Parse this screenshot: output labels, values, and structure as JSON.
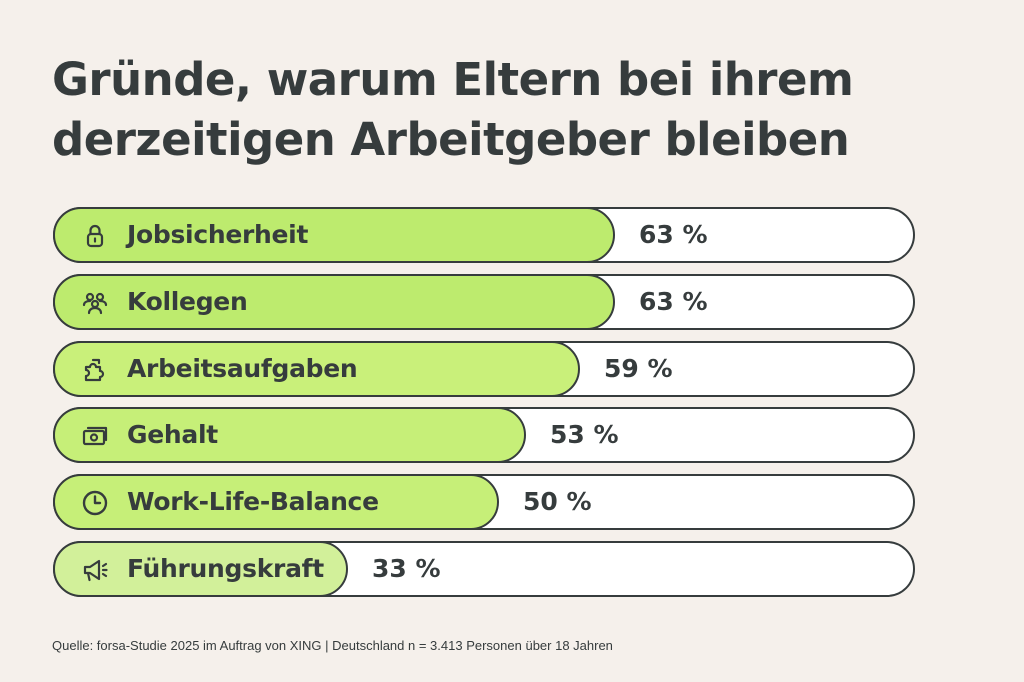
{
  "header": {
    "title_line1": "Gründe, warum Eltern bei ihrem",
    "title_line2": "derzeitigen Arbeitgeber bleiben"
  },
  "chart_data": {
    "type": "bar",
    "orientation": "horizontal",
    "title": "Gründe, warum Eltern bei ihrem derzeitigen Arbeitgeber bleiben",
    "unit": "%",
    "xlim": [
      0,
      100
    ],
    "categories": [
      "Jobsicherheit",
      "Kollegen",
      "Arbeitsaufgaben",
      "Gehalt",
      "Work-Life-Balance",
      "Führungskraft"
    ],
    "values": [
      63,
      63,
      59,
      53,
      50,
      33
    ],
    "value_labels": [
      "63 %",
      "63 %",
      "59 %",
      "53 %",
      "50 %",
      "33 %"
    ],
    "icons": [
      "lock-icon",
      "people-icon",
      "puzzle-icon",
      "banknote-icon",
      "clock-icon",
      "megaphone-icon"
    ],
    "fill_colors": [
      "#bdeb6e",
      "#bdeb6e",
      "#c9f07a",
      "#c6ef78",
      "#c6ef78",
      "#d2f09a"
    ],
    "grid": false,
    "legend": "none"
  },
  "source": "Quelle: forsa-Studie 2025 im Auftrag von XING | Deutschland n = 3.413 Personen über 18 Jahren"
}
